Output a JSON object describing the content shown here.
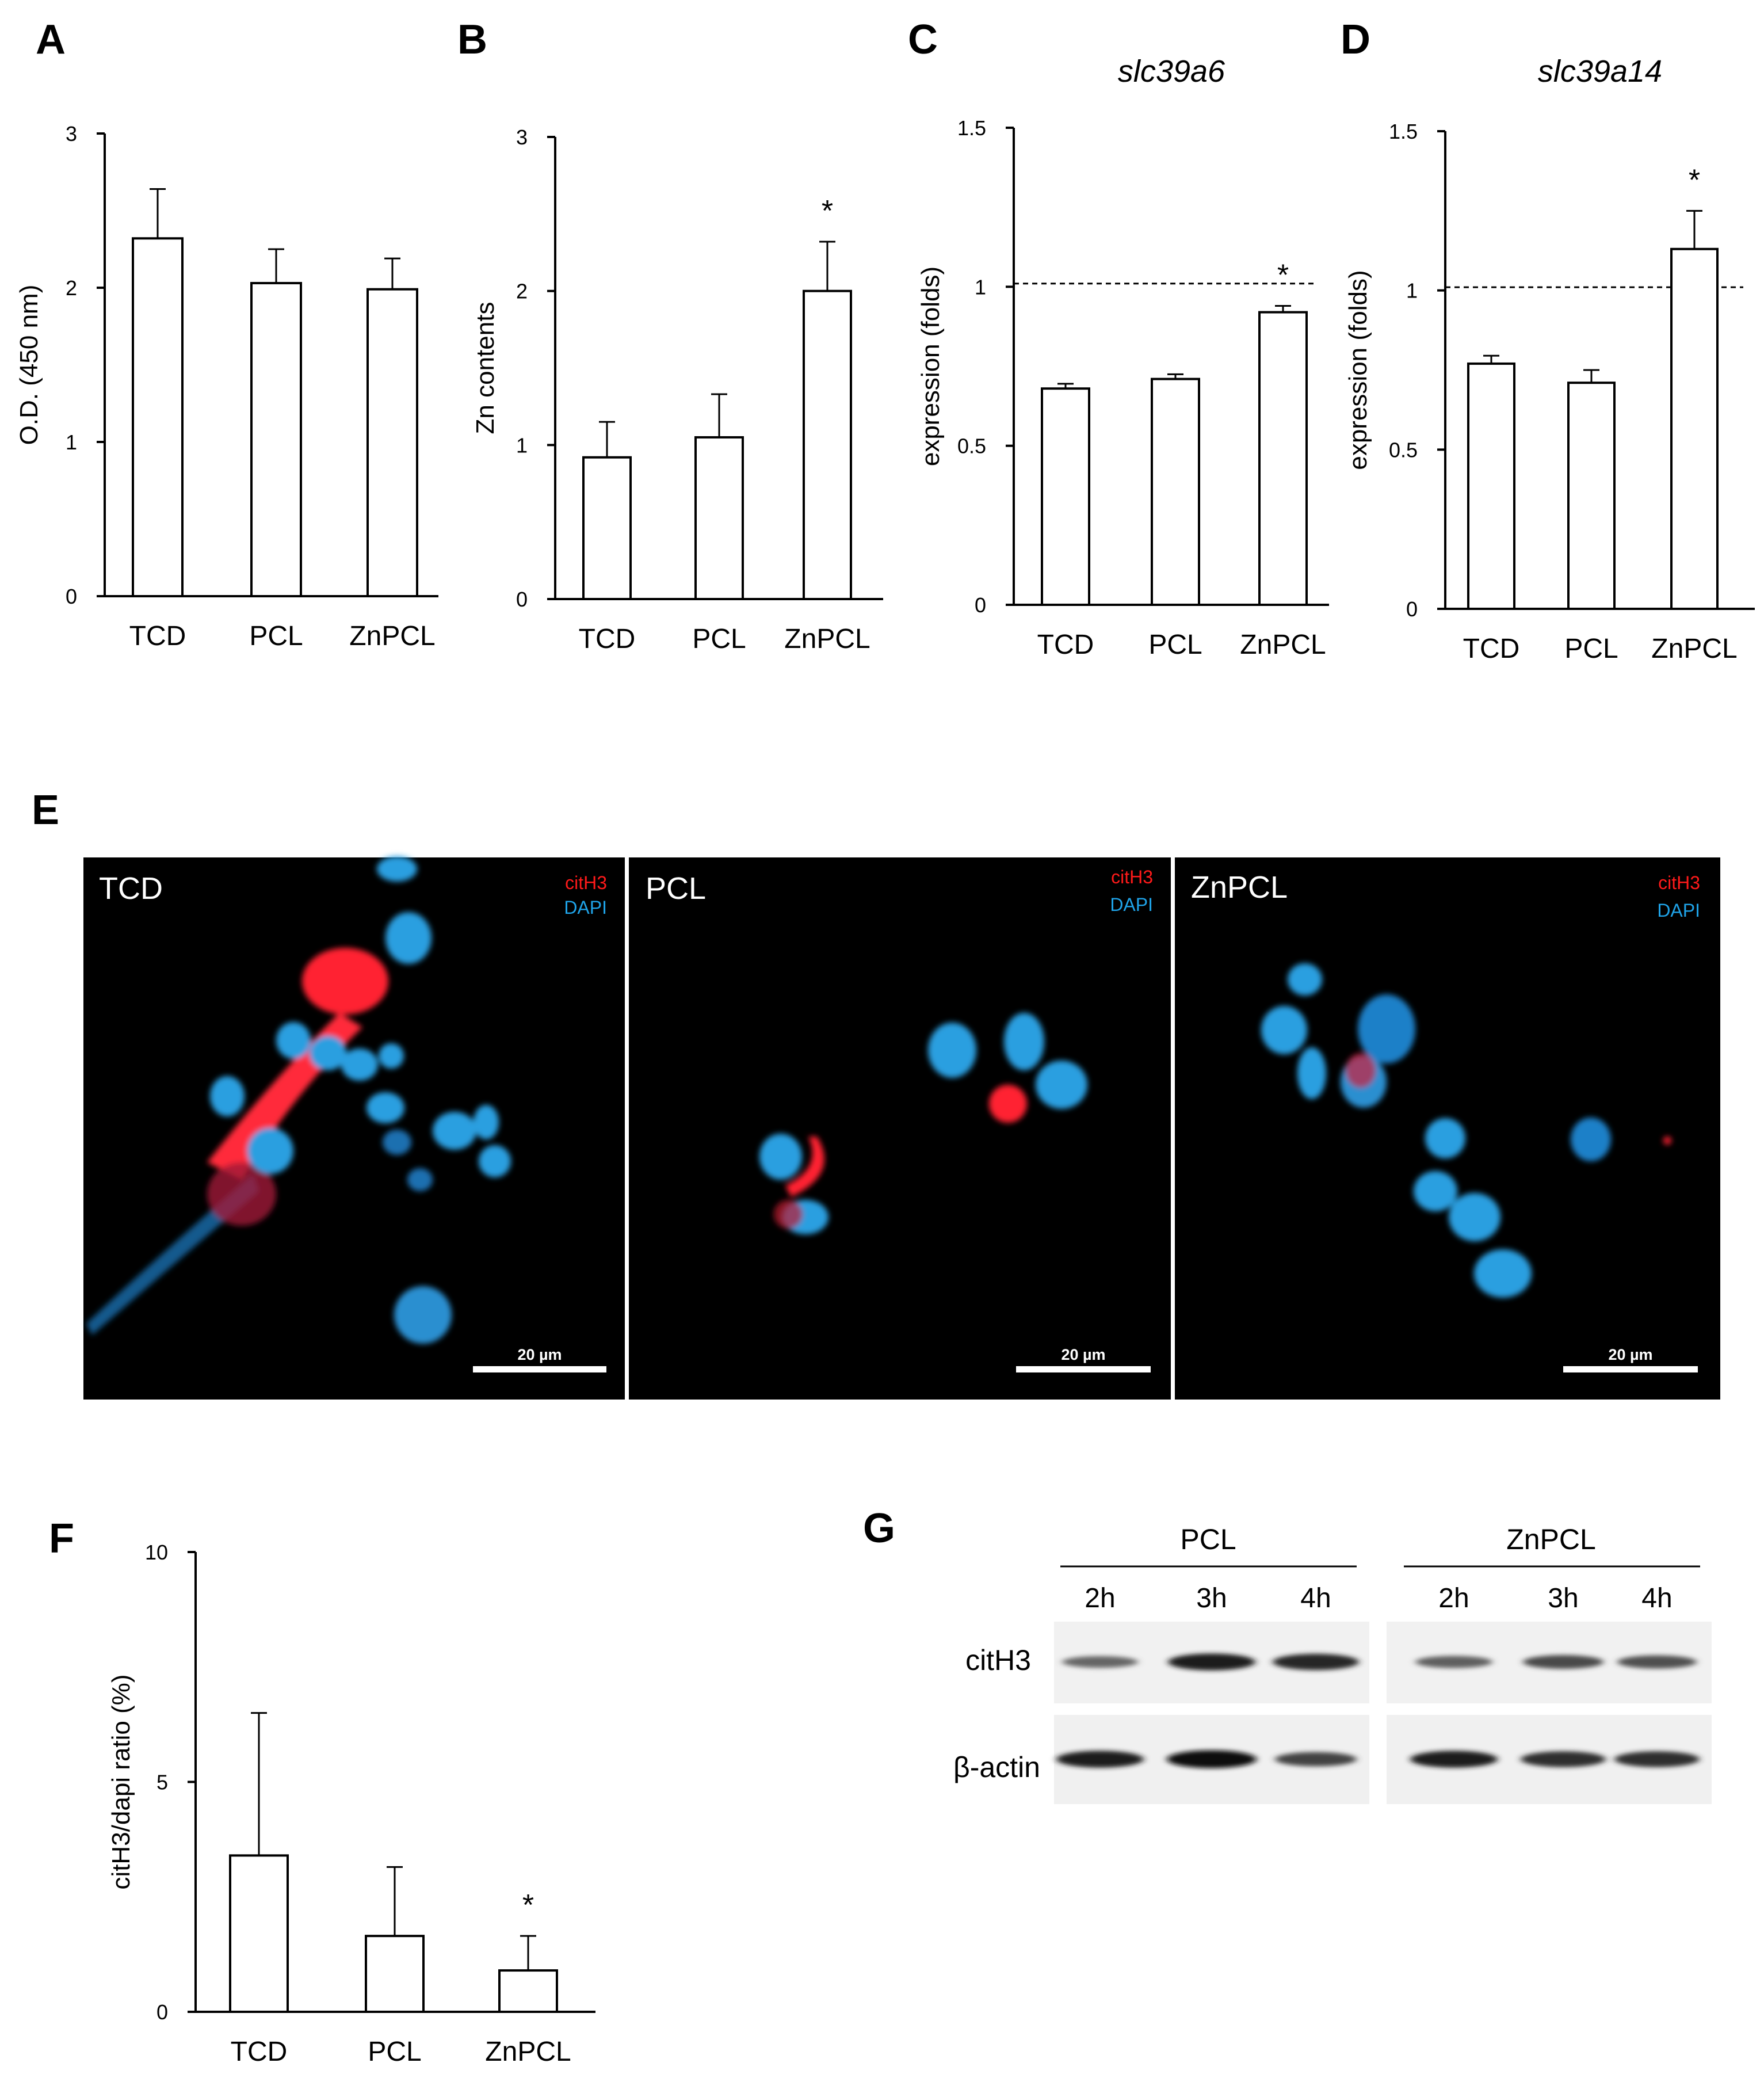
{
  "panel_letters": [
    "A",
    "B",
    "C",
    "D",
    "E",
    "F",
    "G"
  ],
  "chart_data": [
    {
      "panel": "A",
      "type": "bar",
      "title": "",
      "xlabel": "",
      "ylabel": "O.D. (450 nm)",
      "categories": [
        "TCD",
        "PCL",
        "ZnPCL"
      ],
      "values": [
        2.32,
        2.03,
        1.99
      ],
      "errors": [
        0.32,
        0.22,
        0.2
      ],
      "ylim": [
        0,
        3
      ],
      "yticks": [
        "0",
        "1",
        "2",
        "3"
      ],
      "significance": [
        "",
        "",
        ""
      ],
      "grid": false
    },
    {
      "panel": "B",
      "type": "bar",
      "title": "",
      "xlabel": "",
      "ylabel": "Zn contents",
      "categories": [
        "TCD",
        "PCL",
        "ZnPCL"
      ],
      "values": [
        0.92,
        1.05,
        2.0
      ],
      "errors": [
        0.23,
        0.28,
        0.32
      ],
      "ylim": [
        0,
        3
      ],
      "yticks": [
        "0",
        "1",
        "2",
        "3"
      ],
      "significance": [
        "",
        "",
        "*"
      ],
      "grid": false
    },
    {
      "panel": "C",
      "type": "bar",
      "title": "slc39a6",
      "xlabel": "",
      "ylabel": "expression (folds)",
      "categories": [
        "TCD",
        "PCL",
        "ZnPCL"
      ],
      "values": [
        0.68,
        0.71,
        0.92
      ],
      "errors": [
        0.015,
        0.015,
        0.02
      ],
      "ylim": [
        0,
        1.5
      ],
      "yticks": [
        "0",
        "0.5",
        "1",
        "1.5"
      ],
      "reference_line": 1.01,
      "significance": [
        "",
        "",
        "*"
      ],
      "grid": false
    },
    {
      "panel": "D",
      "type": "bar",
      "title": "slc39a14",
      "xlabel": "",
      "ylabel": "expression (folds)",
      "categories": [
        "TCD",
        "PCL",
        "ZnPCL"
      ],
      "values": [
        0.77,
        0.71,
        1.13
      ],
      "errors": [
        0.025,
        0.04,
        0.12
      ],
      "ylim": [
        0,
        1.5
      ],
      "yticks": [
        "0",
        "0.5",
        "1",
        "1.5"
      ],
      "reference_line": 1.01,
      "significance": [
        "",
        "",
        "*"
      ],
      "grid": false
    },
    {
      "panel": "F",
      "type": "bar",
      "title": "",
      "xlabel": "",
      "ylabel": "citH3/dapi ratio (%)",
      "categories": [
        "TCD",
        "PCL",
        "ZnPCL"
      ],
      "values": [
        3.4,
        1.65,
        0.9
      ],
      "errors": [
        3.1,
        1.5,
        0.75
      ],
      "ylim": [
        0,
        10
      ],
      "yticks": [
        "0",
        "5",
        "10"
      ],
      "significance": [
        "",
        "",
        "*"
      ],
      "grid": false
    }
  ],
  "microscopy": {
    "panels": [
      {
        "label": "TCD",
        "legend_red": "citH3",
        "legend_blue": "DAPI",
        "scale_bar": "20 µm"
      },
      {
        "label": "PCL",
        "legend_red": "citH3",
        "legend_blue": "DAPI",
        "scale_bar": "20 µm"
      },
      {
        "label": "ZnPCL",
        "legend_red": "citH3",
        "legend_blue": "DAPI",
        "scale_bar": "20 µm"
      }
    ],
    "colors": {
      "citH3": "#ff1a1a",
      "DAPI": "#1fa3e8",
      "background": "#000000"
    }
  },
  "western_blot": {
    "groups": [
      {
        "name": "PCL",
        "lanes": [
          "2h",
          "3h",
          "4h"
        ]
      },
      {
        "name": "ZnPCL",
        "lanes": [
          "2h",
          "3h",
          "4h"
        ]
      }
    ],
    "rows": [
      {
        "label": "citH3",
        "intensity": [
          0.35,
          0.85,
          0.8,
          0.4,
          0.55,
          0.5
        ]
      },
      {
        "label": "β-actin",
        "intensity": [
          0.85,
          0.95,
          0.6,
          0.85,
          0.75,
          0.75
        ]
      }
    ]
  }
}
